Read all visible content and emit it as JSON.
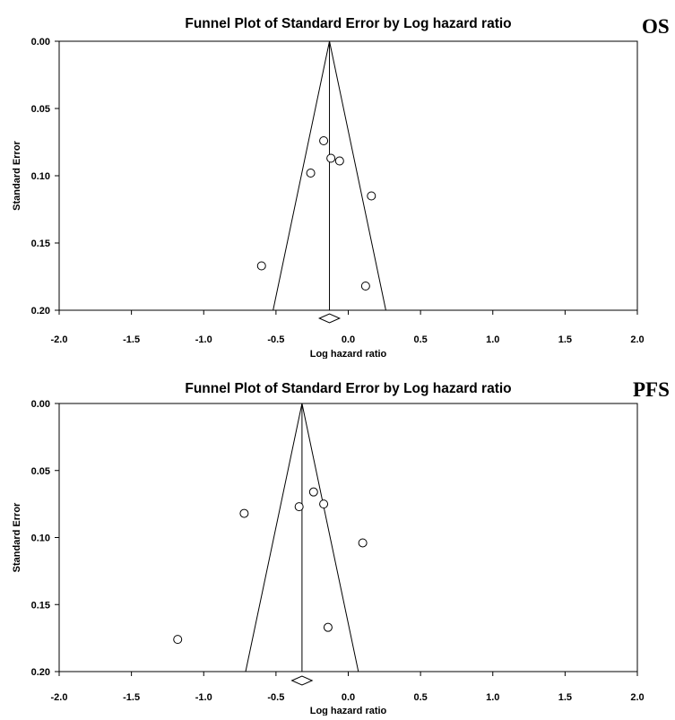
{
  "chart_data": [
    {
      "type": "scatter",
      "title": "Funnel Plot of Standard Error by Log hazard ratio",
      "tag": "OS",
      "xlabel": "Log hazard ratio",
      "ylabel": "Standard Error",
      "xlim": [
        -2.0,
        2.0
      ],
      "ylim": [
        0.0,
        0.2
      ],
      "y_reversed": true,
      "x_ticks": [
        "-2.0",
        "-1.5",
        "-1.0",
        "-0.5",
        "0.0",
        "0.5",
        "1.0",
        "1.5",
        "2.0"
      ],
      "y_ticks": [
        "0.00",
        "0.05",
        "0.10",
        "0.15",
        "0.20"
      ],
      "pooled_estimate": -0.13,
      "funnel": {
        "left_at_max_se": -0.52,
        "right_at_max_se": 0.26
      },
      "points": [
        {
          "x": -0.17,
          "y": 0.074
        },
        {
          "x": -0.12,
          "y": 0.087
        },
        {
          "x": -0.06,
          "y": 0.089
        },
        {
          "x": -0.26,
          "y": 0.098
        },
        {
          "x": 0.16,
          "y": 0.115
        },
        {
          "x": -0.6,
          "y": 0.167
        },
        {
          "x": 0.12,
          "y": 0.182
        }
      ],
      "summary_diamond": {
        "center": -0.13,
        "lower": -0.2,
        "upper": -0.06
      }
    },
    {
      "type": "scatter",
      "title": "Funnel Plot of Standard Error by Log hazard ratio",
      "tag": "PFS",
      "xlabel": "Log hazard ratio",
      "ylabel": "Standard Error",
      "xlim": [
        -2.0,
        2.0
      ],
      "ylim": [
        0.0,
        0.2
      ],
      "y_reversed": true,
      "x_ticks": [
        "-2.0",
        "-1.5",
        "-1.0",
        "-0.5",
        "0.0",
        "0.5",
        "1.0",
        "1.5",
        "2.0"
      ],
      "y_ticks": [
        "0.00",
        "0.05",
        "0.10",
        "0.15",
        "0.20"
      ],
      "pooled_estimate": -0.32,
      "funnel": {
        "left_at_max_se": -0.71,
        "right_at_max_se": 0.07
      },
      "points": [
        {
          "x": -0.24,
          "y": 0.066
        },
        {
          "x": -0.17,
          "y": 0.075
        },
        {
          "x": -0.34,
          "y": 0.077
        },
        {
          "x": -0.72,
          "y": 0.082
        },
        {
          "x": 0.1,
          "y": 0.104
        },
        {
          "x": -0.14,
          "y": 0.167
        },
        {
          "x": -1.18,
          "y": 0.176
        }
      ],
      "summary_diamond": {
        "center": -0.32,
        "lower": -0.39,
        "upper": -0.25
      }
    }
  ]
}
